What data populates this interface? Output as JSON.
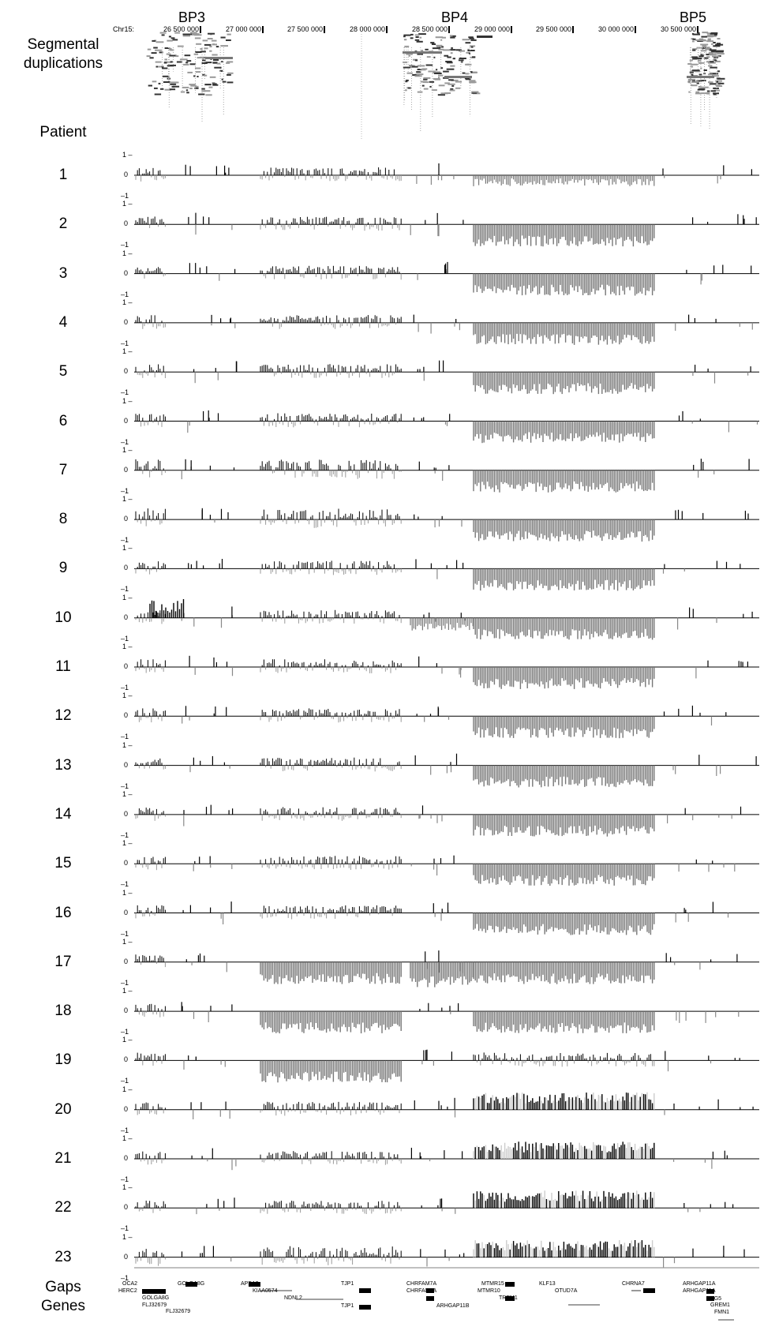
{
  "header": {
    "breakpoints": [
      "BP3",
      "BP4",
      "BP5"
    ],
    "chromosome": "Chr15:",
    "coordinates": [
      "26 500 000",
      "27 000 000",
      "27 500 000",
      "28 000 000",
      "28 500 000",
      "29 000 000",
      "29 500 000",
      "30 000 000",
      "30 500 000"
    ]
  },
  "labels": {
    "segmental_line1": "Segmental",
    "segmental_line2": "duplications",
    "patient": "Patient",
    "gaps": "Gaps",
    "genes": "Genes"
  },
  "axis_labels": {
    "top": "1 –",
    "zero": "0",
    "bottom": "–1"
  },
  "patients": [
    "1",
    "2",
    "3",
    "4",
    "5",
    "6",
    "7",
    "8",
    "9",
    "10",
    "11",
    "12",
    "13",
    "14",
    "15",
    "16",
    "17",
    "18",
    "19",
    "20",
    "21",
    "22",
    "23"
  ],
  "genes": [
    "OCA2",
    "HERC2",
    "GOLGA8G",
    "FLJ32679",
    "GOLGA8G",
    "FLJ32679",
    "APBA2",
    "KIAA0574",
    "NDNL2",
    "TJP1",
    "TJP1",
    "CHRFAM7A",
    "CHRFAM7A",
    "ARHGAP11B",
    "MTMR15",
    "MTMR10",
    "TRPM1",
    "KLF13",
    "OTUD7A",
    "CHRNA7",
    "ARHGAP11A",
    "ARHGAP11A",
    "SCG5",
    "GREM1",
    "FMN1"
  ]
}
